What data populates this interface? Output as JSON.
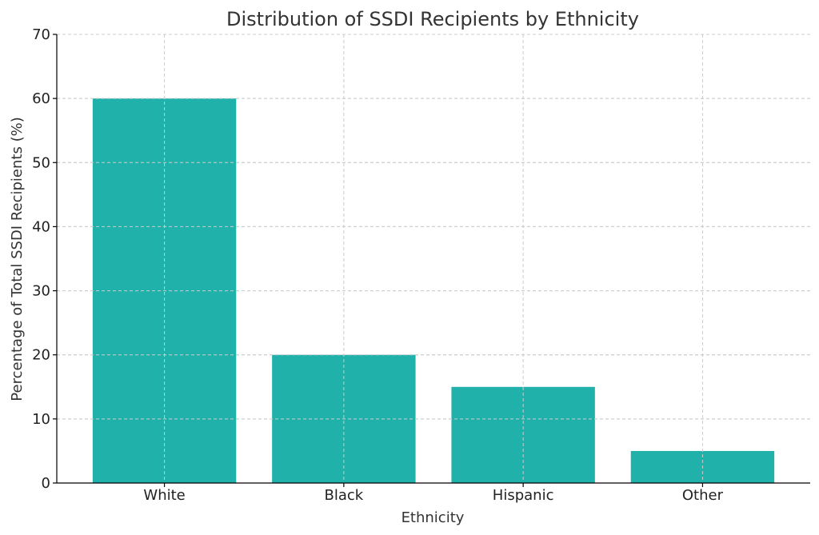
{
  "chart_data": {
    "type": "bar",
    "title": "Distribution of SSDI Recipients by Ethnicity",
    "xlabel": "Ethnicity",
    "ylabel": "Percentage of Total SSDI Recipients (%)",
    "categories": [
      "White",
      "Black",
      "Hispanic",
      "Other"
    ],
    "values": [
      60,
      20,
      15,
      5
    ],
    "ylim": [
      0,
      70
    ],
    "yticks": [
      0,
      10,
      20,
      30,
      40,
      50,
      60,
      70
    ],
    "grid": true,
    "bar_color": "#20b2aa",
    "legend": null
  }
}
